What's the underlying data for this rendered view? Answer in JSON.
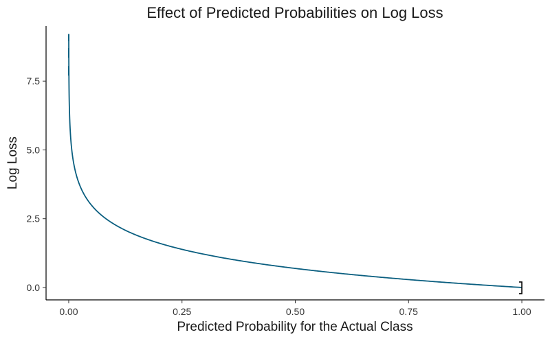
{
  "chart_data": {
    "type": "line",
    "title": "Effect of Predicted Probabilities on Log Loss",
    "xlabel": "Predicted Probability for the Actual Class",
    "ylabel": "Log Loss",
    "xlim": [
      -0.05,
      1.05
    ],
    "ylim": [
      -0.45,
      9.5
    ],
    "x_ticks": [
      0,
      0.25,
      0.5,
      0.75,
      1
    ],
    "x_tick_labels": [
      "0.00",
      "0.25",
      "0.50",
      "0.75",
      "1.00"
    ],
    "y_ticks": [
      0,
      2.5,
      5,
      7.5
    ],
    "y_tick_labels": [
      "0.0",
      "2.5",
      "5.0",
      "7.5"
    ],
    "grid": false,
    "legend": "none",
    "series": [
      {
        "function": "-ln(p)",
        "color": "#0b5f80",
        "x": [
          0.0001,
          0.0005,
          0.001,
          0.002,
          0.005,
          0.01,
          0.02,
          0.03,
          0.05,
          0.075,
          0.1,
          0.15,
          0.2,
          0.25,
          0.3,
          0.35,
          0.4,
          0.45,
          0.5,
          0.55,
          0.6,
          0.65,
          0.7,
          0.75,
          0.8,
          0.85,
          0.9,
          0.95,
          1.0
        ],
        "y": [
          9.21,
          7.6,
          6.91,
          6.21,
          5.3,
          4.61,
          3.91,
          3.51,
          3.0,
          2.59,
          2.3,
          1.9,
          1.61,
          1.39,
          1.2,
          1.05,
          0.92,
          0.8,
          0.69,
          0.6,
          0.51,
          0.43,
          0.36,
          0.29,
          0.22,
          0.16,
          0.11,
          0.05,
          0.0
        ]
      }
    ]
  },
  "colors": {
    "line": "#0b5f80",
    "axis": "#000000"
  }
}
